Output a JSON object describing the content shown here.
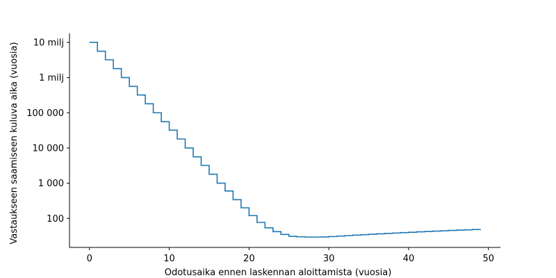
{
  "chart_data": {
    "type": "line",
    "step": "post",
    "xlabel": "Odotusaika ennen laskennan aloittamista (vuosia)",
    "ylabel": "Vastaukseen saamiseen kuluva aika (vuosia)",
    "yscale": "log",
    "xlim": [
      -2.5,
      51.5
    ],
    "ylim": [
      15,
      18000000
    ],
    "grid": false,
    "x_ticks": [
      0,
      10,
      20,
      30,
      40,
      50
    ],
    "x_tick_labels": [
      "0",
      "10",
      "20",
      "30",
      "40",
      "50"
    ],
    "y_ticks": [
      100,
      1000,
      10000,
      100000,
      1000000,
      10000000
    ],
    "y_tick_labels": [
      "100",
      "1 000",
      "10 000",
      "100 000",
      "1 milj",
      "10 milj"
    ],
    "series": [
      {
        "color": "#1f77b4",
        "x": [
          0,
          1,
          2,
          3,
          4,
          5,
          6,
          7,
          8,
          9,
          10,
          11,
          12,
          13,
          14,
          15,
          16,
          17,
          18,
          19,
          20,
          21,
          22,
          23,
          24,
          25,
          26,
          27,
          28,
          29,
          30,
          31,
          32,
          33,
          34,
          35,
          36,
          37,
          38,
          39,
          40,
          41,
          42,
          43,
          44,
          45,
          46,
          47,
          48,
          49
        ],
        "y": [
          10000000,
          5600000,
          3200000,
          1800000,
          1000000,
          560000,
          320000,
          180000,
          100000,
          56000,
          32000,
          18000,
          10000,
          5600,
          3200,
          1800,
          1000,
          600,
          340,
          200,
          120,
          77,
          54,
          42,
          35,
          31,
          30,
          29.5,
          29.5,
          29.7,
          30.5,
          31.5,
          32.5,
          33.5,
          34.5,
          35.5,
          36.5,
          37.5,
          38.5,
          39.5,
          40.5,
          41.5,
          42.5,
          43.5,
          44.5,
          45.5,
          46.5,
          47.5,
          48.5,
          49.5
        ]
      }
    ]
  }
}
